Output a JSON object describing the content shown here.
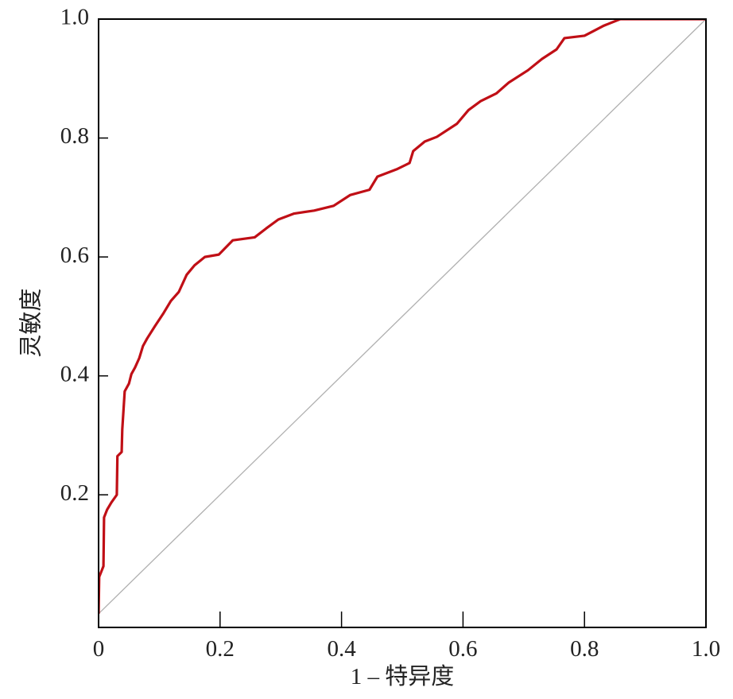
{
  "chart_data": {
    "type": "line",
    "xlabel": "1 – 特异度",
    "ylabel": "灵敏度",
    "x": [
      0,
      0.001,
      0.008,
      0.009,
      0.014,
      0.021,
      0.03,
      0.031,
      0.038,
      0.039,
      0.043,
      0.05,
      0.054,
      0.06,
      0.067,
      0.073,
      0.08,
      0.093,
      0.106,
      0.119,
      0.132,
      0.145,
      0.158,
      0.175,
      0.198,
      0.221,
      0.257,
      0.276,
      0.296,
      0.322,
      0.355,
      0.387,
      0.414,
      0.446,
      0.459,
      0.492,
      0.512,
      0.518,
      0.537,
      0.557,
      0.59,
      0.609,
      0.629,
      0.655,
      0.675,
      0.707,
      0.73,
      0.754,
      0.767,
      0.8,
      0.817,
      0.832,
      0.859,
      1.0
    ],
    "values": [
      0,
      0.062,
      0.08,
      0.162,
      0.175,
      0.187,
      0.2,
      0.265,
      0.272,
      0.31,
      0.374,
      0.387,
      0.403,
      0.414,
      0.43,
      0.45,
      0.463,
      0.484,
      0.504,
      0.526,
      0.541,
      0.57,
      0.586,
      0.6,
      0.604,
      0.628,
      0.633,
      0.648,
      0.663,
      0.673,
      0.678,
      0.686,
      0.704,
      0.713,
      0.735,
      0.748,
      0.758,
      0.778,
      0.794,
      0.802,
      0.824,
      0.847,
      0.862,
      0.875,
      0.893,
      0.914,
      0.933,
      0.949,
      0.968,
      0.972,
      0.981,
      0.989,
      1.0,
      1.0
    ],
    "color": "#c00f16",
    "diagonal_color": "#b0b0b0",
    "xlim": [
      0,
      1
    ],
    "ylim": [
      -0.023,
      1
    ],
    "xticks": [
      0,
      0.2,
      0.4,
      0.6,
      0.8,
      {
        "value": 1,
        "label": "1.0"
      }
    ],
    "yticks": [
      0.2,
      0.4,
      0.6,
      0.8,
      {
        "value": 1,
        "label": "1.0"
      }
    ]
  }
}
